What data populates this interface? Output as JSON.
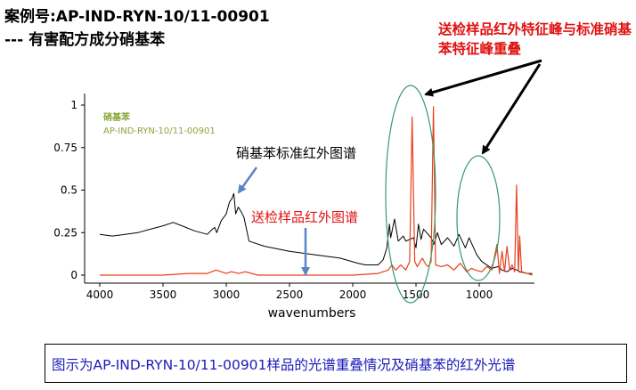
{
  "header": {
    "title": "案例号:AP-IND-RYN-10/11-00901",
    "subtitle": "--- 有害配方成分硝基苯"
  },
  "annotations": {
    "overlap_note": "送检样品红外特征峰与标准硝基苯特征峰重叠",
    "standard_label": "硝基苯标准红外图谱",
    "sample_label": "送检样品红外图谱"
  },
  "caption": "图示为AP-IND-RYN-10/11-00901样品的光谱重叠情况及硝基苯的红外光谱",
  "colors": {
    "standard": "#000000",
    "sample": "#e8401c",
    "legend": "#8aa63a",
    "ellipse": "#3a9a6a",
    "arrow_blue": "#5b84c4",
    "note_red": "#e01010",
    "caption_blue": "#1a1ab8"
  },
  "chart_data": {
    "type": "line",
    "xlabel": "wavenumbers",
    "ylabel": "",
    "xlim": [
      4000,
      580
    ],
    "ylim": [
      0,
      1
    ],
    "x_ticks": [
      4000,
      3500,
      3000,
      2500,
      2000,
      1500,
      1000
    ],
    "y_ticks": [
      0,
      0.25,
      0.5,
      0.75,
      1
    ],
    "y_tick_labels": [
      "0",
      "0.25",
      "0.5",
      "0.75",
      "1"
    ],
    "legend": {
      "lines": [
        "硝基苯",
        "AP-IND-RYN-10/11-00901"
      ],
      "placement": "top-left"
    },
    "series": [
      {
        "name": "硝基苯",
        "color": "#000000",
        "points": [
          [
            4000,
            0.24
          ],
          [
            3900,
            0.23
          ],
          [
            3800,
            0.24
          ],
          [
            3700,
            0.25
          ],
          [
            3600,
            0.27
          ],
          [
            3500,
            0.29
          ],
          [
            3420,
            0.31
          ],
          [
            3350,
            0.29
          ],
          [
            3250,
            0.26
          ],
          [
            3150,
            0.24
          ],
          [
            3110,
            0.27
          ],
          [
            3090,
            0.28
          ],
          [
            3075,
            0.25
          ],
          [
            3040,
            0.32
          ],
          [
            3000,
            0.36
          ],
          [
            2975,
            0.43
          ],
          [
            2955,
            0.45
          ],
          [
            2940,
            0.48
          ],
          [
            2925,
            0.36
          ],
          [
            2905,
            0.4
          ],
          [
            2880,
            0.37
          ],
          [
            2860,
            0.34
          ],
          [
            2840,
            0.27
          ],
          [
            2820,
            0.2
          ],
          [
            2700,
            0.17
          ],
          [
            2500,
            0.14
          ],
          [
            2300,
            0.12
          ],
          [
            2100,
            0.1
          ],
          [
            1960,
            0.07
          ],
          [
            1900,
            0.06
          ],
          [
            1800,
            0.06
          ],
          [
            1760,
            0.09
          ],
          [
            1730,
            0.16
          ],
          [
            1710,
            0.3
          ],
          [
            1700,
            0.22
          ],
          [
            1670,
            0.33
          ],
          [
            1640,
            0.2
          ],
          [
            1600,
            0.23
          ],
          [
            1580,
            0.2
          ],
          [
            1520,
            0.22
          ],
          [
            1500,
            0.16
          ],
          [
            1480,
            0.3
          ],
          [
            1460,
            0.21
          ],
          [
            1440,
            0.27
          ],
          [
            1380,
            0.22
          ],
          [
            1360,
            0.18
          ],
          [
            1330,
            0.25
          ],
          [
            1300,
            0.18
          ],
          [
            1250,
            0.22
          ],
          [
            1200,
            0.17
          ],
          [
            1160,
            0.24
          ],
          [
            1110,
            0.16
          ],
          [
            1080,
            0.22
          ],
          [
            1020,
            0.12
          ],
          [
            980,
            0.08
          ],
          [
            900,
            0.04
          ],
          [
            850,
            0.05
          ],
          [
            820,
            0.03
          ],
          [
            780,
            0.02
          ],
          [
            740,
            0.04
          ],
          [
            700,
            0.03
          ],
          [
            680,
            0.02
          ],
          [
            620,
            0.01
          ],
          [
            580,
            0.01
          ]
        ]
      },
      {
        "name": "AP-IND-RYN-10/11-00901",
        "color": "#e8401c",
        "points": [
          [
            4000,
            0.0
          ],
          [
            3700,
            0.0
          ],
          [
            3500,
            0.0
          ],
          [
            3300,
            0.01
          ],
          [
            3150,
            0.01
          ],
          [
            3080,
            0.03
          ],
          [
            3040,
            0.02
          ],
          [
            3000,
            0.01
          ],
          [
            2960,
            0.02
          ],
          [
            2900,
            0.01
          ],
          [
            2850,
            0.02
          ],
          [
            2750,
            0.0
          ],
          [
            2500,
            0.0
          ],
          [
            2200,
            0.0
          ],
          [
            2000,
            0.0
          ],
          [
            1800,
            0.01
          ],
          [
            1720,
            0.03
          ],
          [
            1690,
            0.06
          ],
          [
            1660,
            0.03
          ],
          [
            1620,
            0.06
          ],
          [
            1580,
            0.03
          ],
          [
            1550,
            0.08
          ],
          [
            1530,
            0.93
          ],
          [
            1510,
            0.08
          ],
          [
            1490,
            0.05
          ],
          [
            1450,
            0.1
          ],
          [
            1420,
            0.06
          ],
          [
            1400,
            0.05
          ],
          [
            1380,
            0.08
          ],
          [
            1362,
            0.99
          ],
          [
            1345,
            0.06
          ],
          [
            1300,
            0.05
          ],
          [
            1250,
            0.06
          ],
          [
            1200,
            0.03
          ],
          [
            1150,
            0.07
          ],
          [
            1100,
            0.02
          ],
          [
            1060,
            0.04
          ],
          [
            1030,
            0.03
          ],
          [
            980,
            0.02
          ],
          [
            940,
            0.05
          ],
          [
            900,
            0.03
          ],
          [
            860,
            0.18
          ],
          [
            840,
            0.01
          ],
          [
            820,
            0.14
          ],
          [
            800,
            0.02
          ],
          [
            780,
            0.17
          ],
          [
            760,
            0.03
          ],
          [
            740,
            0.06
          ],
          [
            720,
            0.02
          ],
          [
            705,
            0.53
          ],
          [
            690,
            0.02
          ],
          [
            680,
            0.23
          ],
          [
            665,
            0.02
          ],
          [
            620,
            0.01
          ],
          [
            580,
            0.0
          ]
        ]
      }
    ]
  }
}
